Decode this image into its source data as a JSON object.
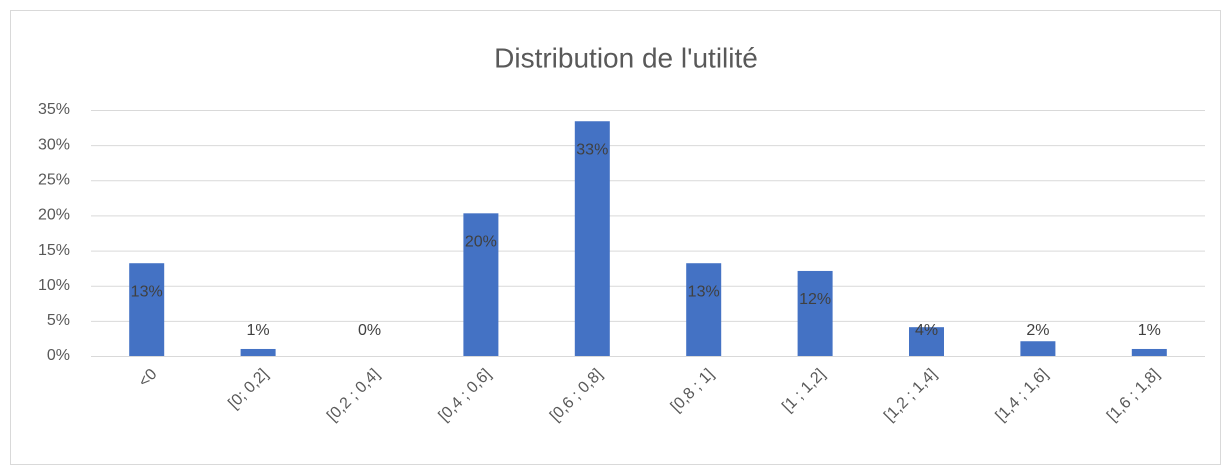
{
  "chart_data": {
    "type": "bar",
    "title": "Distribution de l'utilité",
    "categories": [
      "<0",
      "[0; 0,2]",
      "[0,2 ; 0,4]",
      "[0,4 ; 0,6]",
      "[0,6 ; 0,8]",
      "[0,8 ; 1]",
      "[1 ; 1,2]",
      "[1,2 ; 1,4]",
      "[1,4 ; 1,6]",
      "[1,6 ; 1,8]"
    ],
    "values": [
      13.2,
      1.0,
      0,
      20.3,
      33.4,
      13.2,
      12.1,
      4.1,
      2.1,
      1.0
    ],
    "value_labels": [
      "13%",
      "1%",
      "0%",
      "20%",
      "33%",
      "13%",
      "12%",
      "4%",
      "2%",
      "1%"
    ],
    "color": "#4472c4",
    "ylim": [
      0,
      35
    ],
    "yticks": [
      {
        "value": 0,
        "label": "0%"
      },
      {
        "value": 5,
        "label": "5%"
      },
      {
        "value": 10,
        "label": "10%"
      },
      {
        "value": 15,
        "label": "15%"
      },
      {
        "value": 20,
        "label": "20%"
      },
      {
        "value": 25,
        "label": "25%"
      },
      {
        "value": 30,
        "label": "30%"
      },
      {
        "value": 35,
        "label": "35%"
      }
    ],
    "grid": true
  }
}
